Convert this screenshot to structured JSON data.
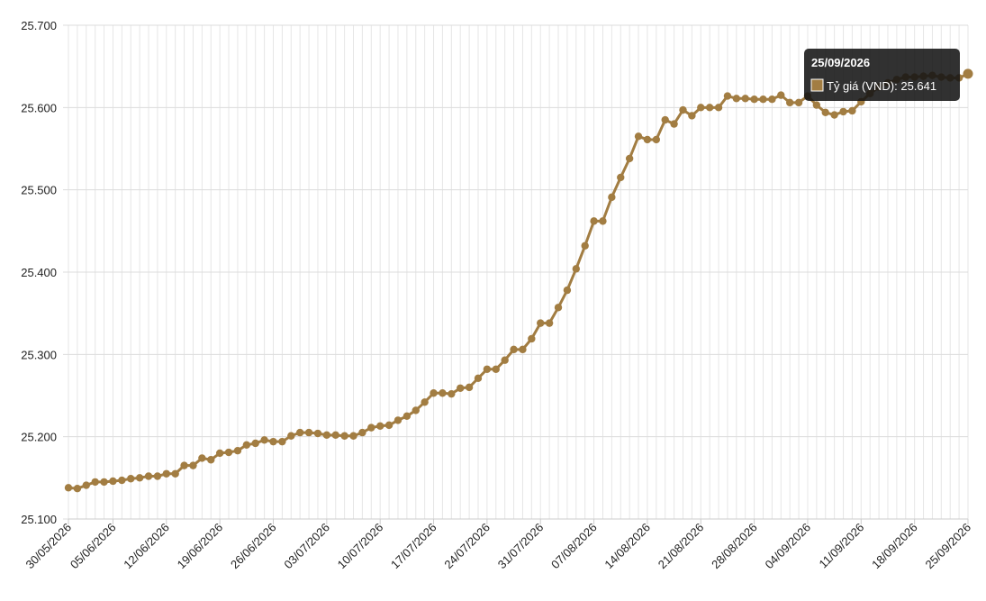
{
  "chart_data": {
    "type": "line",
    "categories": [
      "30/05/2026",
      null,
      null,
      null,
      null,
      "05/06/2026",
      null,
      null,
      null,
      null,
      null,
      "12/06/2026",
      null,
      null,
      null,
      null,
      null,
      "19/06/2026",
      null,
      null,
      null,
      null,
      null,
      "26/06/2026",
      null,
      null,
      null,
      null,
      null,
      "03/07/2026",
      null,
      null,
      null,
      null,
      null,
      "10/07/2026",
      null,
      null,
      null,
      null,
      null,
      "17/07/2026",
      null,
      null,
      null,
      null,
      null,
      "24/07/2026",
      null,
      null,
      null,
      null,
      null,
      "31/07/2026",
      null,
      null,
      null,
      null,
      null,
      "07/08/2026",
      null,
      null,
      null,
      null,
      null,
      "14/08/2026",
      null,
      null,
      null,
      null,
      null,
      "21/08/2026",
      null,
      null,
      null,
      null,
      null,
      "28/08/2026",
      null,
      null,
      null,
      null,
      null,
      "04/09/2026",
      null,
      null,
      null,
      null,
      null,
      "11/09/2026",
      null,
      null,
      null,
      null,
      null,
      "18/09/2026",
      null,
      null,
      null,
      null,
      null,
      "25/09/2026"
    ],
    "series": [
      {
        "name": "Tỷ giá (VND)",
        "color": "#a27d42",
        "values": [
          25138,
          25137,
          25141,
          25145,
          25145,
          25146,
          25147,
          25149,
          25150,
          25152,
          25152,
          25155,
          25155,
          25165,
          25165,
          25174,
          25172,
          25180,
          25181,
          25183,
          25190,
          25192,
          25196,
          25194,
          25194,
          25201,
          25205,
          25205,
          25204,
          25202,
          25202,
          25201,
          25201,
          25205,
          25211,
          25213,
          25214,
          25220,
          25225,
          25232,
          25242,
          25253,
          25253,
          25252,
          25259,
          25260,
          25271,
          25282,
          25282,
          25293,
          25306,
          25306,
          25319,
          25338,
          25338,
          25357,
          25378,
          25404,
          25432,
          25462,
          25462,
          25491,
          25515,
          25538,
          25565,
          25561,
          25561,
          25585,
          25580,
          25597,
          25590,
          25600,
          25600,
          25600,
          25614,
          25611,
          25611,
          25610,
          25610,
          25610,
          25615,
          25606,
          25606,
          25614,
          25603,
          25594,
          25591,
          25595,
          25596,
          25607,
          25617,
          25625,
          25630,
          25634,
          25637,
          25637,
          25638,
          25639,
          25637,
          25636,
          25636,
          25641
        ]
      }
    ],
    "ylim": [
      25100,
      25700
    ],
    "yticks": [
      {
        "value": 25100,
        "label": "25.100"
      },
      {
        "value": 25200,
        "label": "25.200"
      },
      {
        "value": 25300,
        "label": "25.300"
      },
      {
        "value": 25400,
        "label": "25.400"
      },
      {
        "value": 25500,
        "label": "25.500"
      },
      {
        "value": 25600,
        "label": "25.600"
      },
      {
        "value": 25700,
        "label": "25.700"
      }
    ],
    "grid": true,
    "tooltip": {
      "title": "25/09/2026",
      "text": "Tỷ giá (VND): 25.641"
    }
  }
}
